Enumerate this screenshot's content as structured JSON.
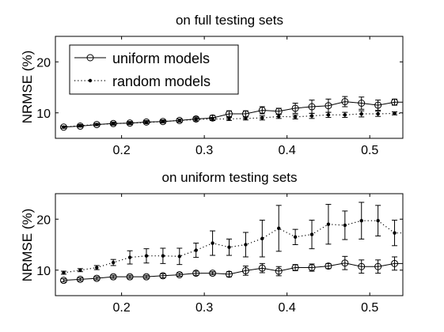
{
  "chart_data": [
    {
      "type": "line",
      "title": "on full testing sets",
      "xlabel": "",
      "ylabel": "NRMSE (%)",
      "xlim": [
        0.12,
        0.54
      ],
      "ylim": [
        5,
        25
      ],
      "xticks": [
        0.2,
        0.3,
        0.4,
        0.5
      ],
      "yticks": [
        10,
        20
      ],
      "grid": false,
      "legend": "top-left",
      "x": [
        0.13,
        0.15,
        0.17,
        0.19,
        0.21,
        0.23,
        0.25,
        0.27,
        0.29,
        0.31,
        0.33,
        0.35,
        0.37,
        0.39,
        0.41,
        0.43,
        0.45,
        0.47,
        0.49,
        0.51,
        0.53
      ],
      "series": [
        {
          "name": "uniform models",
          "style": "solid",
          "marker": "circle",
          "values": [
            7.2,
            7.4,
            7.7,
            7.9,
            8.0,
            8.2,
            8.3,
            8.5,
            8.8,
            9.0,
            9.8,
            9.8,
            10.5,
            10.3,
            10.9,
            11.2,
            11.4,
            12.2,
            11.9,
            11.5,
            12.1
          ],
          "errors": [
            0.2,
            0.2,
            0.2,
            0.3,
            0.3,
            0.3,
            0.3,
            0.3,
            0.4,
            0.5,
            0.6,
            0.6,
            0.7,
            0.6,
            1.0,
            1.3,
            1.3,
            1.0,
            1.2,
            1.0,
            0.6
          ]
        },
        {
          "name": "random models",
          "style": "dotted",
          "marker": "dot",
          "values": [
            7.2,
            7.5,
            7.7,
            7.9,
            8.0,
            8.1,
            8.3,
            8.5,
            8.7,
            8.8,
            8.8,
            8.9,
            9.0,
            9.3,
            9.2,
            9.4,
            9.6,
            9.6,
            9.8,
            9.8,
            9.9
          ],
          "errors": [
            0.2,
            0.2,
            0.2,
            0.2,
            0.2,
            0.2,
            0.2,
            0.3,
            0.3,
            0.3,
            0.3,
            0.3,
            0.4,
            0.4,
            0.4,
            0.5,
            0.5,
            0.5,
            0.6,
            0.5,
            0.3
          ]
        }
      ]
    },
    {
      "type": "line",
      "title": "on uniform testing sets",
      "xlabel": "",
      "ylabel": "NRMSE (%)",
      "xlim": [
        0.12,
        0.54
      ],
      "ylim": [
        5,
        25
      ],
      "xticks": [
        0.2,
        0.3,
        0.4,
        0.5
      ],
      "yticks": [
        10,
        20
      ],
      "grid": false,
      "legend": "none",
      "x": [
        0.13,
        0.15,
        0.17,
        0.19,
        0.21,
        0.23,
        0.25,
        0.27,
        0.29,
        0.31,
        0.33,
        0.35,
        0.37,
        0.39,
        0.41,
        0.43,
        0.45,
        0.47,
        0.49,
        0.51,
        0.53
      ],
      "series": [
        {
          "name": "uniform models",
          "style": "solid",
          "marker": "circle",
          "values": [
            8.0,
            8.2,
            8.4,
            8.7,
            8.7,
            8.7,
            8.9,
            9.1,
            9.4,
            9.4,
            9.2,
            9.9,
            10.4,
            9.8,
            10.5,
            10.5,
            10.8,
            11.4,
            10.7,
            10.7,
            11.3
          ],
          "errors": [
            0.3,
            0.3,
            0.3,
            0.3,
            0.3,
            0.3,
            0.4,
            0.3,
            0.4,
            0.3,
            0.5,
            0.9,
            0.9,
            0.9,
            0.6,
            0.7,
            0.5,
            1.3,
            1.3,
            1.3,
            1.3
          ]
        },
        {
          "name": "random models",
          "style": "dotted",
          "marker": "dot",
          "values": [
            9.5,
            10.0,
            10.5,
            11.5,
            12.5,
            12.8,
            12.8,
            12.7,
            13.9,
            15.3,
            14.5,
            15.0,
            16.2,
            18.2,
            16.5,
            17.0,
            19.0,
            18.8,
            19.7,
            19.7,
            17.3
          ],
          "errors": [
            0.3,
            0.3,
            0.4,
            0.6,
            1.3,
            1.4,
            1.5,
            1.6,
            1.4,
            2.4,
            1.6,
            2.4,
            3.6,
            4.5,
            1.5,
            2.8,
            3.9,
            2.8,
            3.6,
            3.0,
            2.5
          ]
        }
      ]
    }
  ]
}
